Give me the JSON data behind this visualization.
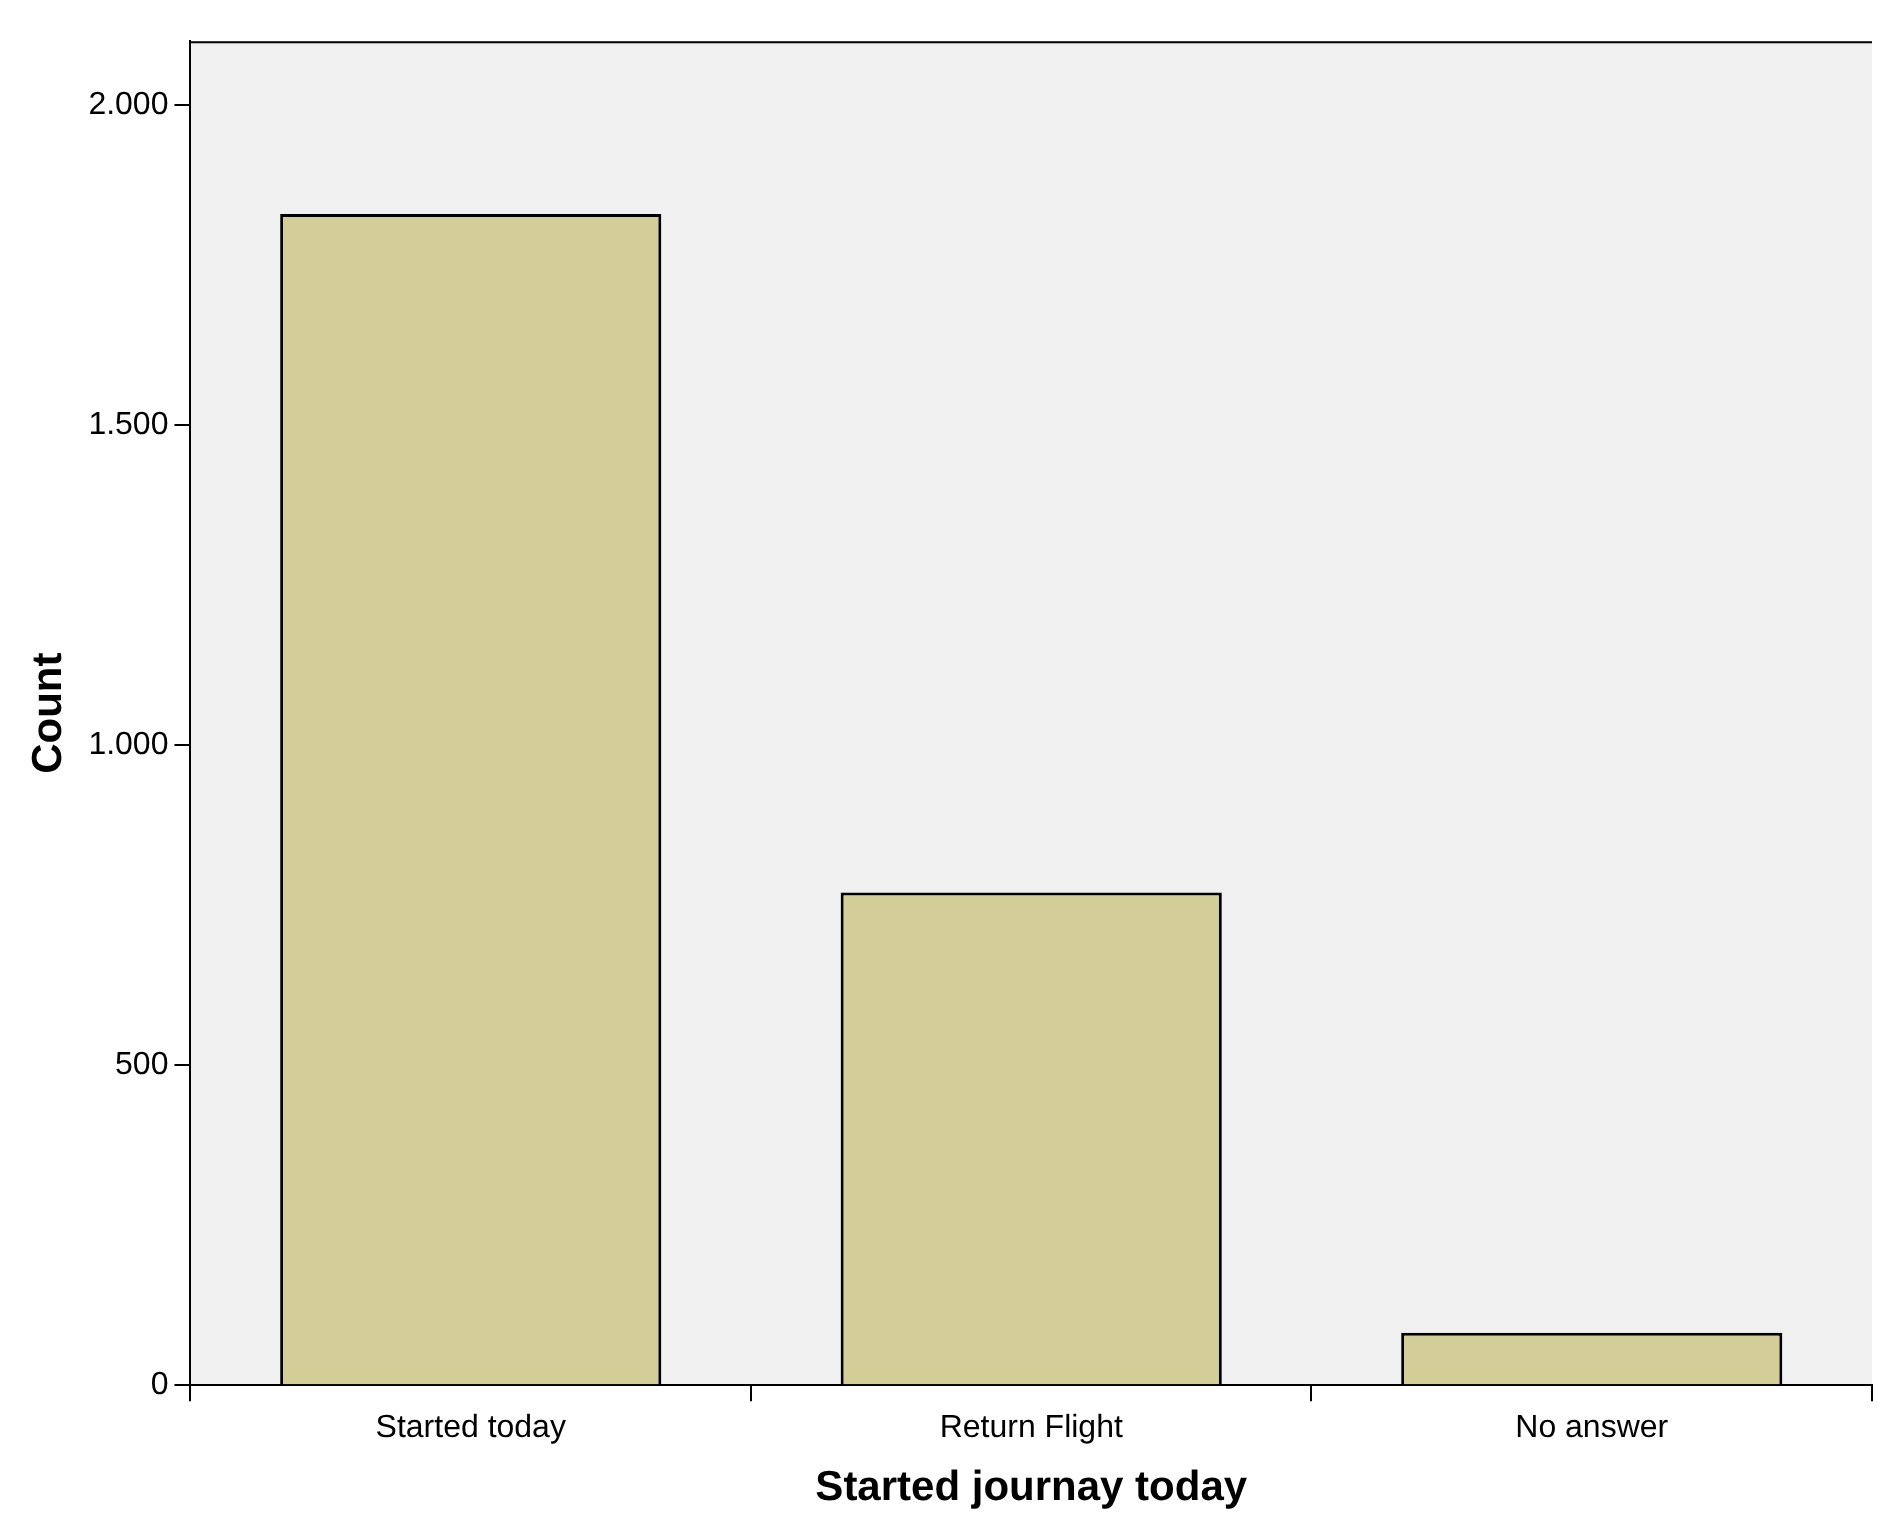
{
  "chart_data": {
    "type": "bar",
    "xlabel": "Started journay today",
    "ylabel": "Count",
    "categories": [
      "Started today",
      "Return Flight",
      "No answer"
    ],
    "values": [
      1830,
      770,
      82
    ],
    "color": "#d3ce97",
    "ylim": [
      0,
      2100
    ],
    "yticks": [
      {
        "value": 0,
        "label": "0"
      },
      {
        "value": 500,
        "label": "500"
      },
      {
        "value": 1000,
        "label": "1.000"
      },
      {
        "value": 1500,
        "label": "1.500"
      },
      {
        "value": 2000,
        "label": "2.000"
      }
    ],
    "grid": false,
    "legend": false
  }
}
